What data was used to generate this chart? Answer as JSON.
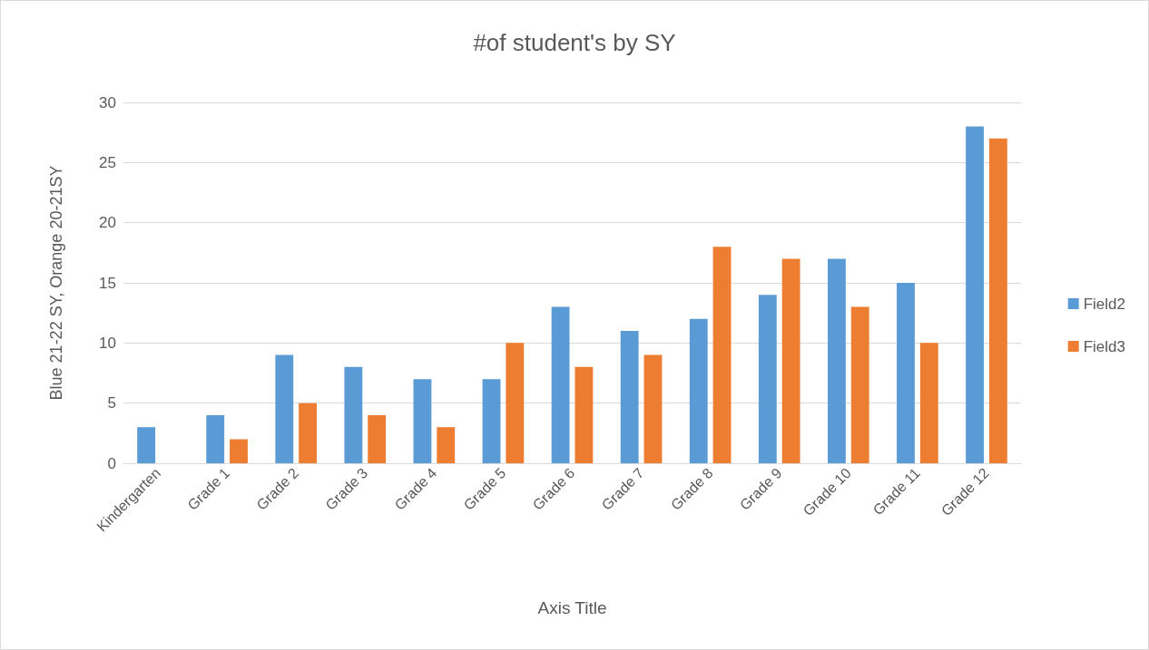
{
  "chart_data": {
    "type": "bar",
    "title": "#of student's by SY",
    "xlabel": "Axis Title",
    "ylabel": "Blue 21-22 SY, Orange 20-21SY",
    "categories": [
      "Kindergarten",
      "Grade 1",
      "Grade 2",
      "Grade 3",
      "Grade 4",
      "Grade 5",
      "Grade 6",
      "Grade 7",
      "Grade 8",
      "Grade 9",
      "Grade 10",
      "Grade 11",
      "Grade 12"
    ],
    "series": [
      {
        "name": "Field2",
        "color": "#5b9bd5",
        "values": [
          3,
          4,
          9,
          8,
          7,
          7,
          13,
          11,
          12,
          14,
          17,
          15,
          28
        ]
      },
      {
        "name": "Field3",
        "color": "#ed7d31",
        "values": [
          null,
          2,
          5,
          4,
          3,
          10,
          8,
          9,
          18,
          17,
          13,
          10,
          27
        ]
      }
    ],
    "ylim": [
      0,
      30
    ],
    "yticks": [
      0,
      5,
      10,
      15,
      20,
      25,
      30
    ],
    "grid": "y",
    "legend": "right"
  }
}
